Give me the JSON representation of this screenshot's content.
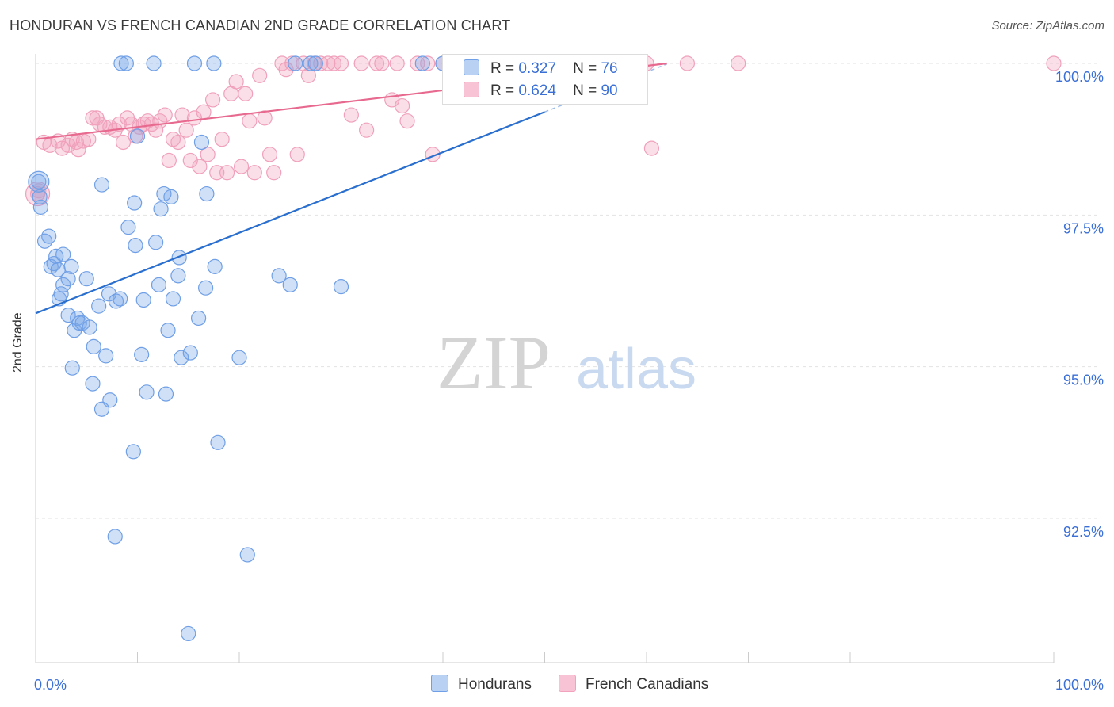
{
  "title": "HONDURAN VS FRENCH CANADIAN 2ND GRADE CORRELATION CHART",
  "source": "Source: ZipAtlas.com",
  "watermark": {
    "zip": "ZIP",
    "atlas": "atlas"
  },
  "legend": {
    "rows": [
      {
        "r_label": "R =",
        "r_value": "0.327",
        "n_label": "N =",
        "n_value": "76"
      },
      {
        "r_label": "R =",
        "r_value": "0.624",
        "n_label": "N =",
        "n_value": "90"
      }
    ]
  },
  "bottom_legend": [
    "Hondurans",
    "French Canadians"
  ],
  "chart_data": {
    "type": "scatter",
    "title": "HONDURAN VS FRENCH CANADIAN 2ND GRADE CORRELATION CHART",
    "xlabel": "",
    "ylabel": "2nd Grade",
    "xlim": [
      0,
      100
    ],
    "ylim": [
      90.2,
      100.2
    ],
    "x_tick_labels": [
      "0.0%",
      "100.0%"
    ],
    "y_ticks": [
      92.5,
      95.0,
      97.5,
      100.0
    ],
    "y_tick_labels": [
      "92.5%",
      "95.0%",
      "97.5%",
      "100.0%"
    ],
    "grid": true,
    "legend_position": "top-center",
    "colors": {
      "hondurans": "#6f9fe6",
      "hondurans_line": "#2a6fce",
      "french": "#f2a2bd",
      "french_line": "#e8698f"
    },
    "series": [
      {
        "name": "Hondurans",
        "R": 0.327,
        "N": 76,
        "trend": {
          "x": [
            0,
            50
          ],
          "y": [
            95.88,
            99.2
          ]
        },
        "trend_dashed": {
          "x": [
            50,
            62
          ],
          "y": [
            99.2,
            99.99
          ]
        },
        "points": [
          [
            0.3,
            98.05
          ],
          [
            0.5,
            97.63
          ],
          [
            0.9,
            97.07
          ],
          [
            1.3,
            97.15
          ],
          [
            1.5,
            96.65
          ],
          [
            1.8,
            96.7
          ],
          [
            2.0,
            96.82
          ],
          [
            2.2,
            96.6
          ],
          [
            2.7,
            96.85
          ],
          [
            2.3,
            96.12
          ],
          [
            2.7,
            96.35
          ],
          [
            3.2,
            96.45
          ],
          [
            3.2,
            95.85
          ],
          [
            3.5,
            96.65
          ],
          [
            3.8,
            95.6
          ],
          [
            4.1,
            95.8
          ],
          [
            4.3,
            95.72
          ],
          [
            4.6,
            95.72
          ],
          [
            5.0,
            96.45
          ],
          [
            5.3,
            95.65
          ],
          [
            3.6,
            94.98
          ],
          [
            5.6,
            94.72
          ],
          [
            5.7,
            95.33
          ],
          [
            6.2,
            96.0
          ],
          [
            6.5,
            98.0
          ],
          [
            6.5,
            94.3
          ],
          [
            6.9,
            95.18
          ],
          [
            7.2,
            96.2
          ],
          [
            7.3,
            94.45
          ],
          [
            7.9,
            96.08
          ],
          [
            8.3,
            96.12
          ],
          [
            8.4,
            100.0
          ],
          [
            8.9,
            100.0
          ],
          [
            9.1,
            97.3
          ],
          [
            9.6,
            93.6
          ],
          [
            9.7,
            97.7
          ],
          [
            9.8,
            97.0
          ],
          [
            10.0,
            98.8
          ],
          [
            7.8,
            92.2
          ],
          [
            10.4,
            95.2
          ],
          [
            10.6,
            96.1
          ],
          [
            10.9,
            94.58
          ],
          [
            11.6,
            100.0
          ],
          [
            11.8,
            97.05
          ],
          [
            12.1,
            96.35
          ],
          [
            12.3,
            97.6
          ],
          [
            12.6,
            97.85
          ],
          [
            12.8,
            94.55
          ],
          [
            13.0,
            95.6
          ],
          [
            13.3,
            97.8
          ],
          [
            13.5,
            96.12
          ],
          [
            14.0,
            96.5
          ],
          [
            14.1,
            96.8
          ],
          [
            14.3,
            95.15
          ],
          [
            15.0,
            90.6
          ],
          [
            15.2,
            95.23
          ],
          [
            15.6,
            100.0
          ],
          [
            16.0,
            95.8
          ],
          [
            16.3,
            98.7
          ],
          [
            16.7,
            96.3
          ],
          [
            16.8,
            97.85
          ],
          [
            17.5,
            100.0
          ],
          [
            17.6,
            96.65
          ],
          [
            17.9,
            93.75
          ],
          [
            20.0,
            95.15
          ],
          [
            20.8,
            91.9
          ],
          [
            23.9,
            96.5
          ],
          [
            25.0,
            96.35
          ],
          [
            25.5,
            100.0
          ],
          [
            27.0,
            100.0
          ],
          [
            27.5,
            100.0
          ],
          [
            30.0,
            96.32
          ],
          [
            38.0,
            100.0
          ],
          [
            40.0,
            100.0
          ],
          [
            0.4,
            97.8
          ],
          [
            2.5,
            96.2
          ]
        ]
      },
      {
        "name": "French Canadians",
        "R": 0.624,
        "N": 90,
        "trend": {
          "x": [
            0,
            62
          ],
          "y": [
            98.75,
            100.0
          ]
        },
        "points": [
          [
            0.2,
            97.85
          ],
          [
            0.8,
            98.7
          ],
          [
            1.4,
            98.65
          ],
          [
            2.2,
            98.72
          ],
          [
            2.6,
            98.6
          ],
          [
            3.2,
            98.65
          ],
          [
            3.6,
            98.75
          ],
          [
            4.0,
            98.7
          ],
          [
            4.2,
            98.58
          ],
          [
            4.7,
            98.72
          ],
          [
            5.2,
            98.75
          ],
          [
            5.6,
            99.1
          ],
          [
            6.0,
            99.1
          ],
          [
            6.3,
            99.0
          ],
          [
            6.8,
            98.95
          ],
          [
            7.3,
            98.95
          ],
          [
            7.8,
            98.9
          ],
          [
            8.2,
            99.0
          ],
          [
            8.6,
            98.7
          ],
          [
            9.0,
            99.1
          ],
          [
            9.4,
            99.0
          ],
          [
            9.8,
            98.8
          ],
          [
            10.2,
            98.95
          ],
          [
            10.6,
            99.0
          ],
          [
            11.0,
            99.05
          ],
          [
            11.4,
            99.0
          ],
          [
            11.8,
            98.9
          ],
          [
            12.2,
            99.05
          ],
          [
            12.7,
            99.15
          ],
          [
            13.1,
            98.4
          ],
          [
            13.5,
            98.75
          ],
          [
            14.0,
            98.7
          ],
          [
            14.4,
            99.15
          ],
          [
            14.8,
            98.9
          ],
          [
            15.2,
            98.4
          ],
          [
            15.6,
            99.1
          ],
          [
            16.1,
            98.3
          ],
          [
            16.5,
            99.2
          ],
          [
            16.9,
            98.5
          ],
          [
            17.4,
            99.4
          ],
          [
            17.8,
            98.2
          ],
          [
            18.3,
            98.75
          ],
          [
            18.8,
            98.2
          ],
          [
            19.2,
            99.5
          ],
          [
            19.7,
            99.7
          ],
          [
            20.2,
            98.3
          ],
          [
            20.6,
            99.5
          ],
          [
            21.0,
            99.05
          ],
          [
            21.5,
            98.2
          ],
          [
            22.0,
            99.8
          ],
          [
            22.5,
            99.1
          ],
          [
            23.0,
            98.5
          ],
          [
            23.4,
            98.2
          ],
          [
            24.2,
            100.0
          ],
          [
            24.6,
            99.9
          ],
          [
            25.2,
            100.0
          ],
          [
            25.7,
            98.5
          ],
          [
            26.3,
            100.0
          ],
          [
            26.8,
            99.8
          ],
          [
            27.4,
            100.0
          ],
          [
            28.0,
            100.0
          ],
          [
            28.7,
            100.0
          ],
          [
            29.3,
            100.0
          ],
          [
            30.0,
            100.0
          ],
          [
            31.0,
            99.15
          ],
          [
            32.0,
            100.0
          ],
          [
            32.5,
            98.9
          ],
          [
            33.5,
            100.0
          ],
          [
            34.0,
            100.0
          ],
          [
            35.0,
            99.4
          ],
          [
            35.5,
            100.0
          ],
          [
            36.0,
            99.3
          ],
          [
            36.5,
            99.05
          ],
          [
            37.5,
            100.0
          ],
          [
            38.5,
            100.0
          ],
          [
            39.0,
            98.5
          ],
          [
            40.0,
            100.0
          ],
          [
            41.0,
            100.0
          ],
          [
            42.0,
            100.0
          ],
          [
            44.0,
            100.0
          ],
          [
            47.0,
            100.0
          ],
          [
            52.0,
            100.0
          ],
          [
            55.0,
            100.0
          ],
          [
            56.0,
            100.0
          ],
          [
            60.0,
            100.0
          ],
          [
            60.5,
            98.6
          ],
          [
            64.0,
            100.0
          ],
          [
            69.0,
            100.0
          ],
          [
            100.0,
            100.0
          ],
          [
            0.3,
            97.9
          ]
        ]
      }
    ]
  }
}
